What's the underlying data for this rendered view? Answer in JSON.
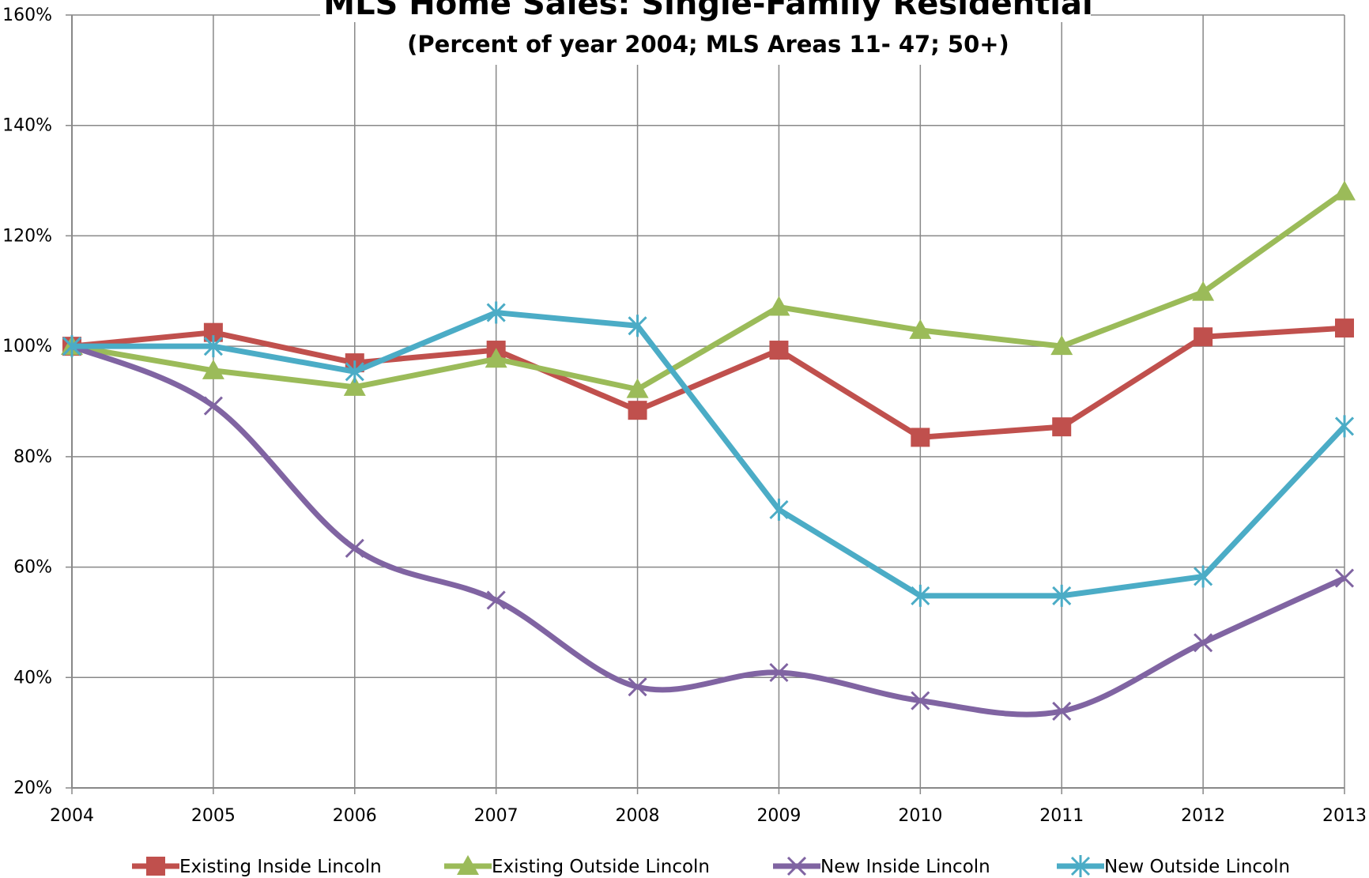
{
  "chart_data": {
    "type": "line",
    "title": "MLS Home Sales: Single-Family Residential",
    "subtitle": "(Percent of year 2004; MLS Areas 11- 47; 50+)",
    "x": [
      2004,
      2005,
      2006,
      2007,
      2008,
      2009,
      2010,
      2011,
      2012,
      2013
    ],
    "xlim": [
      2004,
      2013
    ],
    "xticks": [
      2004,
      2005,
      2006,
      2007,
      2008,
      2009,
      2010,
      2011,
      2012,
      2013
    ],
    "ylim": [
      20,
      160
    ],
    "yticks": [
      {
        "value": 20,
        "label": "20%"
      },
      {
        "value": 40,
        "label": "40%"
      },
      {
        "value": 60,
        "label": "60%"
      },
      {
        "value": 80,
        "label": "80%"
      },
      {
        "value": 100,
        "label": "100%"
      },
      {
        "value": 120,
        "label": "120%"
      },
      {
        "value": 140,
        "label": "140%"
      },
      {
        "value": 160,
        "label": "160%"
      }
    ],
    "grid": true,
    "legend": "bottom",
    "series": [
      {
        "name": "Existing Inside Lincoln",
        "color": "#c0504d",
        "marker": "square",
        "values": [
          100,
          102.5,
          97,
          99.3,
          88.4,
          99.3,
          83.5,
          85.4,
          101.7,
          103.3
        ]
      },
      {
        "name": "Existing Outside Lincoln",
        "color": "#9bbb59",
        "marker": "triangle",
        "values": [
          100,
          95.6,
          92.6,
          97.7,
          92.2,
          107.1,
          102.9,
          100,
          109.8,
          128
        ]
      },
      {
        "name": "New Inside Lincoln",
        "color": "#8064a2",
        "marker": "x",
        "smooth": true,
        "values": [
          100,
          89.2,
          63.4,
          54,
          38.3,
          40.9,
          35.8,
          33.9,
          46.3,
          58
        ]
      },
      {
        "name": "New Outside Lincoln",
        "color": "#4bacc6",
        "marker": "star",
        "values": [
          100,
          100,
          95.4,
          106.1,
          103.7,
          70.4,
          54.8,
          54.8,
          58.3,
          85.5
        ]
      }
    ]
  }
}
